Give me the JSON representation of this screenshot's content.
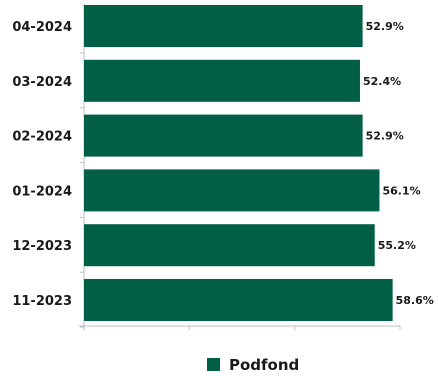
{
  "chart_data": {
    "type": "bar",
    "orientation": "horizontal",
    "categories": [
      "04-2024",
      "03-2024",
      "02-2024",
      "01-2024",
      "12-2023",
      "11-2023"
    ],
    "series": [
      {
        "name": "Podfond",
        "values": [
          52.9,
          52.4,
          52.9,
          56.1,
          55.2,
          58.6
        ]
      }
    ],
    "value_labels": [
      "52.9%",
      "52.4%",
      "52.9%",
      "56.1%",
      "55.2%",
      "58.6%"
    ],
    "xlim": [
      0,
      60
    ],
    "grid": false,
    "legend_position": "bottom",
    "colors": {
      "bar": "#005f44"
    }
  }
}
